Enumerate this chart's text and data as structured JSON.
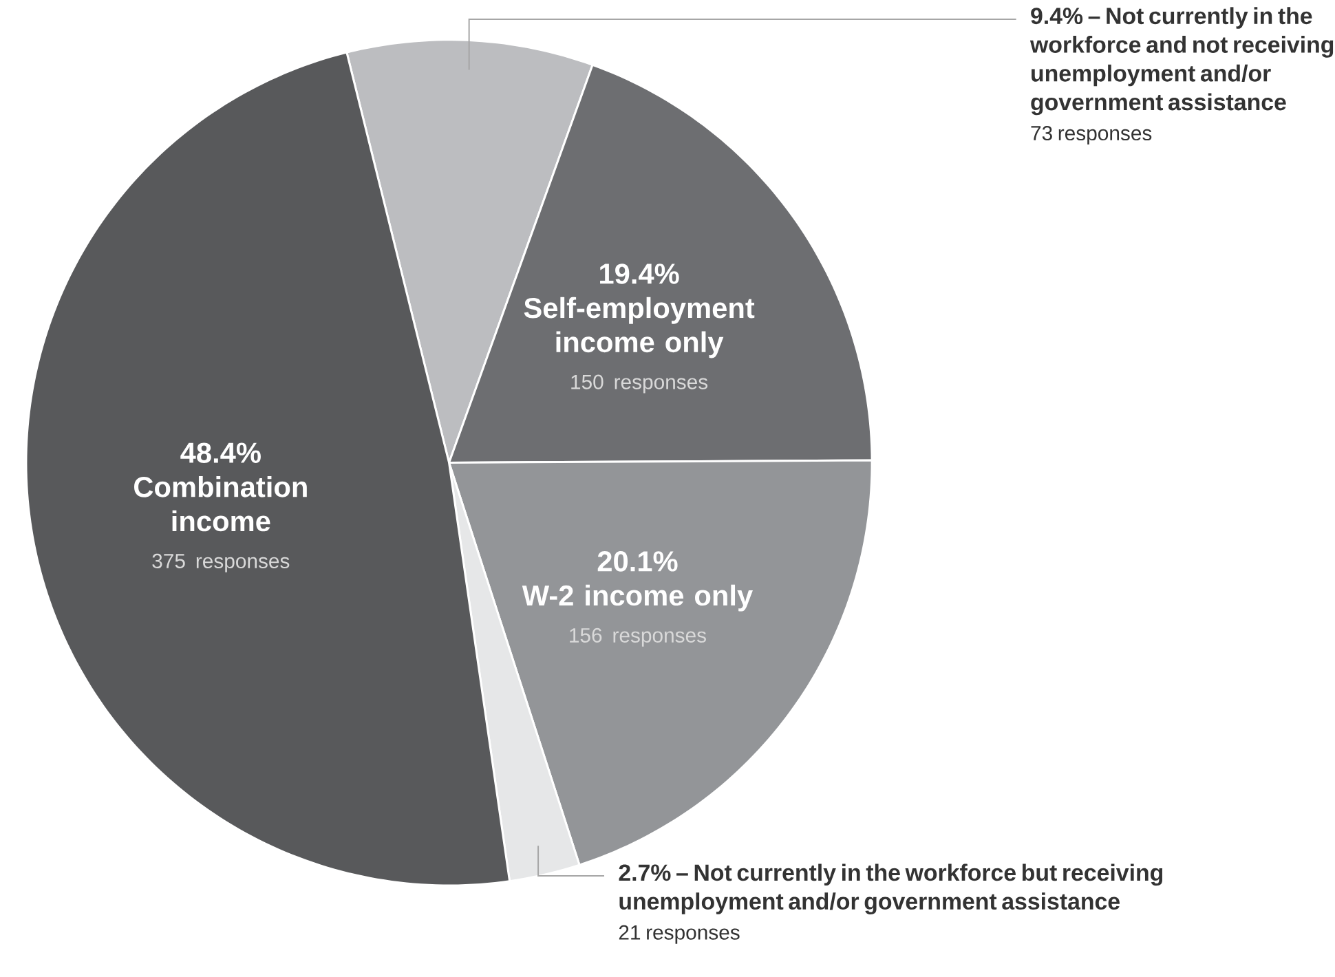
{
  "chart_data": {
    "type": "pie",
    "categories": [
      "Not currently in the workforce and not receiving unemployment and/or government assistance",
      "Self-employment income only",
      "W-2 income only",
      "Not currently in the workforce but receiving unemployment and/or government assistance",
      "Combination income"
    ],
    "values": [
      9.4,
      19.4,
      20.1,
      2.7,
      48.4
    ],
    "value_labels": [
      "9.4% –",
      "19.4%",
      "20.1%",
      "2.7% –",
      "48.4%"
    ],
    "colors": [
      "#bcbdc0",
      "#6d6e71",
      "#939598",
      "#e6e7e8",
      "#58595b"
    ],
    "annotations": [
      "73 responses",
      "150 responses",
      "156 responses",
      "21 responses",
      "375 responses"
    ]
  }
}
